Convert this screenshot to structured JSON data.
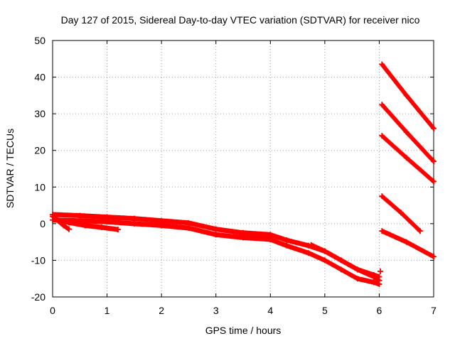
{
  "chart_data": {
    "type": "scatter",
    "title": "Day 127 of 2015, Sidereal Day-to-day VTEC variation (SDTVAR) for receiver nico",
    "xlabel": "GPS time / hours",
    "ylabel": "SDTVAR / TECUs",
    "xlim": [
      0,
      7
    ],
    "ylim": [
      -20,
      50
    ],
    "xticks": [
      "0",
      "1",
      "2",
      "3",
      "4",
      "5",
      "6",
      "7"
    ],
    "yticks": [
      "-20",
      "-10",
      "0",
      "10",
      "20",
      "30",
      "40",
      "50"
    ],
    "grid": true,
    "marker": "+",
    "color": "#ff0000",
    "series": [
      {
        "name": "track-main-upper",
        "x": [
          0.0,
          0.5,
          1.0,
          1.5,
          2.0,
          2.5,
          3.0,
          3.5,
          4.0,
          4.3,
          4.7,
          5.0,
          5.3,
          5.6,
          5.9,
          6.0
        ],
        "y": [
          2.5,
          2.2,
          1.8,
          1.4,
          0.8,
          0.2,
          -1.5,
          -2.5,
          -3.0,
          -4.5,
          -6.0,
          -7.5,
          -10.0,
          -12.5,
          -14.0,
          -14.5
        ]
      },
      {
        "name": "track-main-lower",
        "x": [
          0.0,
          0.5,
          1.0,
          1.5,
          2.0,
          2.5,
          3.0,
          3.5,
          4.0,
          4.3,
          4.7,
          5.0,
          5.3,
          5.6,
          5.9,
          6.0
        ],
        "y": [
          1.0,
          0.8,
          0.5,
          0.0,
          -0.5,
          -1.2,
          -3.0,
          -3.8,
          -4.3,
          -6.0,
          -8.0,
          -10.0,
          -12.5,
          -15.0,
          -16.0,
          -16.5
        ]
      },
      {
        "name": "track-short-a",
        "x": [
          0.05,
          0.3,
          0.6,
          0.9,
          1.2
        ],
        "y": [
          1.2,
          0.3,
          -0.5,
          -1.0,
          -1.6
        ]
      },
      {
        "name": "track-short-b",
        "x": [
          0.0,
          0.1,
          0.2,
          0.3
        ],
        "y": [
          2.0,
          0.8,
          -0.5,
          -1.5
        ]
      },
      {
        "name": "track-late",
        "x": [
          4.75,
          5.0,
          5.3,
          5.6,
          5.9,
          6.0
        ],
        "y": [
          -5.8,
          -7.5,
          -10.0,
          -12.5,
          -14.5,
          -15.5
        ]
      },
      {
        "name": "track-1",
        "x": [
          6.05,
          6.5,
          7.0
        ],
        "y": [
          43.5,
          35.0,
          26.0
        ]
      },
      {
        "name": "track-2",
        "x": [
          6.05,
          6.5,
          7.0
        ],
        "y": [
          32.5,
          25.0,
          17.0
        ]
      },
      {
        "name": "track-3",
        "x": [
          6.05,
          6.5,
          7.0
        ],
        "y": [
          24.0,
          18.0,
          11.5
        ]
      },
      {
        "name": "track-4",
        "x": [
          6.05,
          6.4,
          6.75
        ],
        "y": [
          7.5,
          3.0,
          -2.0
        ]
      },
      {
        "name": "track-5",
        "x": [
          6.05,
          6.5,
          7.0
        ],
        "y": [
          -2.0,
          -5.0,
          -9.0
        ]
      },
      {
        "name": "outlier",
        "x": [
          6.02
        ],
        "y": [
          -13.0
        ]
      }
    ]
  }
}
